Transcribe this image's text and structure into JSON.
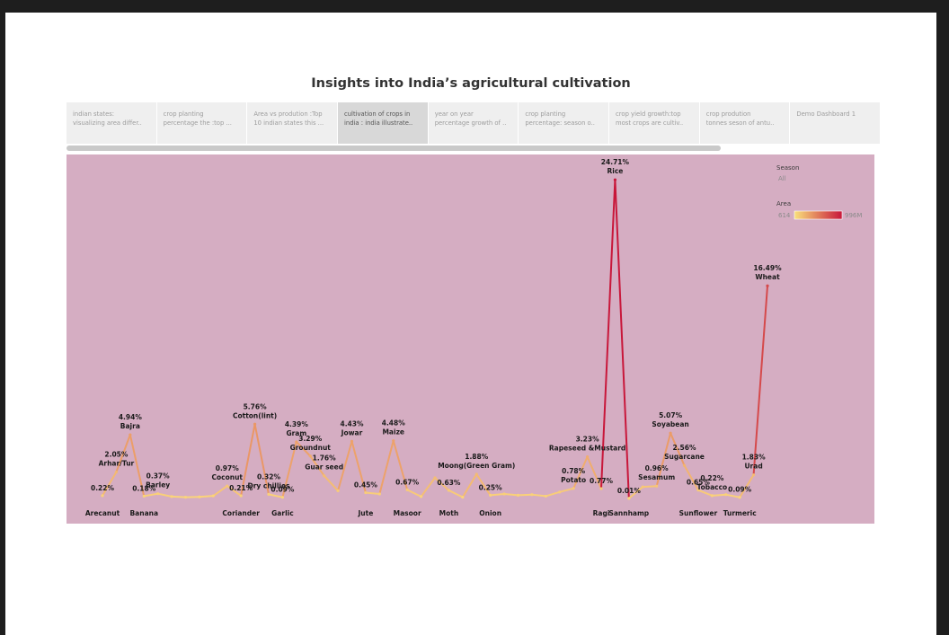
{
  "dashboard": {
    "title": "Insights into India’s agricultural cultivation"
  },
  "tabs": [
    {
      "line1": "indian states:",
      "line2": "visualizing area differ..",
      "active": false
    },
    {
      "line1": "crop planting",
      "line2": "percentage the :top ...",
      "active": false
    },
    {
      "line1": "Area vs prodution :Top",
      "line2": "10 indian states this ...",
      "active": false
    },
    {
      "line1": "cultivation of crops in",
      "line2": "india : india illustrate..",
      "active": true
    },
    {
      "line1": "year on year",
      "line2": "percentage growth of ..",
      "active": false
    },
    {
      "line1": "crop planting",
      "line2": "percentage: season o..",
      "active": false
    },
    {
      "line1": "crop yield growth:top",
      "line2": "most crops are cultiv..",
      "active": false
    },
    {
      "line1": "crop prodution",
      "line2": "tonnes seson of antu..",
      "active": false
    },
    {
      "line1": "Demo Dashboard 1",
      "line2": "",
      "active": false
    }
  ],
  "legend": {
    "season_title": "Season",
    "season_value": "All",
    "area_title": "Area",
    "area_min": "614",
    "area_max": "996M",
    "color_low": "#f9e07c",
    "color_high": "#c8173a"
  },
  "colors": {
    "background": "#d5adc2",
    "line_low": "#fbd77c",
    "line_high": "#c8173a"
  },
  "chart_data": {
    "type": "line",
    "title": "Insights into India’s agricultural cultivation",
    "xlabel": "",
    "ylabel": "",
    "ylim": [
      0,
      25
    ],
    "grid": false,
    "legend": "top-right",
    "values": [
      0.22,
      2.05,
      4.94,
      0.18,
      0.37,
      0.15,
      0.1,
      0.12,
      0.2,
      0.97,
      0.21,
      5.76,
      0.32,
      0.09,
      4.39,
      3.29,
      1.76,
      0.6,
      4.43,
      0.45,
      0.35,
      4.48,
      0.67,
      0.15,
      1.6,
      0.63,
      0.1,
      1.88,
      0.25,
      0.35,
      0.25,
      0.3,
      0.18,
      0.5,
      0.78,
      3.23,
      0.77,
      24.71,
      0.01,
      0.9,
      0.96,
      5.07,
      2.56,
      0.65,
      0.22,
      0.3,
      0.09,
      1.83,
      16.49
    ],
    "points": [
      {
        "i": 0,
        "pct": "0.22%",
        "name": "Arecanut",
        "pctPos": "above",
        "namePos": "axis"
      },
      {
        "i": 1,
        "pct": "2.05%",
        "name": "Arhar/Tur",
        "pctPos": "above2",
        "namePos": "below-pct"
      },
      {
        "i": 2,
        "pct": "4.94%",
        "name": "Bajra",
        "pctPos": "above2",
        "namePos": "below-pct"
      },
      {
        "i": 3,
        "pct": "0.18%",
        "name": "Banana",
        "pctPos": "above",
        "namePos": "axis"
      },
      {
        "i": 4,
        "pct": "0.37%",
        "name": "Barley",
        "pctPos": "above2",
        "namePos": "below-pct"
      },
      {
        "i": 9,
        "pct": "0.97%",
        "name": "Coconut",
        "pctPos": "above2",
        "namePos": "below-pct"
      },
      {
        "i": 10,
        "pct": "0.21%",
        "name": "Coriander",
        "pctPos": "above",
        "namePos": "axis"
      },
      {
        "i": 11,
        "pct": "5.76%",
        "name": "Cotton(lint)",
        "pctPos": "above2",
        "namePos": "below-pct"
      },
      {
        "i": 12,
        "pct": "0.32%",
        "name": "Dry chillies",
        "pctPos": "above2",
        "namePos": "below-pct"
      },
      {
        "i": 13,
        "pct": "0.09%",
        "name": "Garlic",
        "pctPos": "above",
        "namePos": "axis"
      },
      {
        "i": 14,
        "pct": "4.39%",
        "name": "Gram",
        "pctPos": "above2",
        "namePos": "below-pct"
      },
      {
        "i": 15,
        "pct": "3.29%",
        "name": "Groundnut",
        "pctPos": "above2",
        "namePos": "below-pct"
      },
      {
        "i": 16,
        "pct": "1.76%",
        "name": "Guar seed",
        "pctPos": "above2",
        "namePos": "below-pct"
      },
      {
        "i": 18,
        "pct": "4.43%",
        "name": "Jowar",
        "pctPos": "above2",
        "namePos": "below-pct"
      },
      {
        "i": 19,
        "pct": "0.45%",
        "name": "Jute",
        "pctPos": "above",
        "namePos": "axis"
      },
      {
        "i": 21,
        "pct": "4.48%",
        "name": "Maize",
        "pctPos": "above2",
        "namePos": "below-pct"
      },
      {
        "i": 22,
        "pct": "0.67%",
        "name": "Masoor",
        "pctPos": "above",
        "namePos": "axis"
      },
      {
        "i": 25,
        "pct": "0.63%",
        "name": "Moth",
        "pctPos": "above",
        "namePos": "axis"
      },
      {
        "i": 27,
        "pct": "1.88%",
        "name": "Moong(Green Gram)",
        "pctPos": "above2",
        "namePos": "below-pct"
      },
      {
        "i": 28,
        "pct": "0.25%",
        "name": "Onion",
        "pctPos": "above",
        "namePos": "axis"
      },
      {
        "i": 34,
        "pct": "0.78%",
        "name": "Potato",
        "pctPos": "above2",
        "namePos": "below-pct"
      },
      {
        "i": 35,
        "pct": "3.23%",
        "name": "Rapeseed &Mustard",
        "pctPos": "above2",
        "namePos": "below-pct"
      },
      {
        "i": 36,
        "pct": "0.77%",
        "name": "Ragi",
        "pctPos": "above",
        "namePos": "axis"
      },
      {
        "i": 37,
        "pct": "24.71%",
        "name": "Rice",
        "pctPos": "above2",
        "namePos": "below-pct"
      },
      {
        "i": 38,
        "pct": "0.01%",
        "name": "Sannhamp",
        "pctPos": "above",
        "namePos": "axis"
      },
      {
        "i": 40,
        "pct": "0.96%",
        "name": "Sesamum",
        "pctPos": "above2",
        "namePos": "below-pct"
      },
      {
        "i": 41,
        "pct": "5.07%",
        "name": "Soyabean",
        "pctPos": "above2",
        "namePos": "below-pct"
      },
      {
        "i": 42,
        "pct": "2.56%",
        "name": "Sugarcane",
        "pctPos": "above2",
        "namePos": "below-pct"
      },
      {
        "i": 43,
        "pct": "0.65%",
        "name": "Sunflower",
        "pctPos": "above",
        "namePos": "axis"
      },
      {
        "i": 44,
        "pct": "0.22%",
        "name": "Tobacco",
        "pctPos": "above2",
        "namePos": "below-pct"
      },
      {
        "i": 46,
        "pct": "0.09%",
        "name": "Turmeric",
        "pctPos": "above",
        "namePos": "axis"
      },
      {
        "i": 47,
        "pct": "1.83%",
        "name": "Urad",
        "pctPos": "above2",
        "namePos": "below-pct"
      },
      {
        "i": 48,
        "pct": "16.49%",
        "name": "Wheat",
        "pctPos": "above2",
        "namePos": "below-pct"
      }
    ]
  }
}
